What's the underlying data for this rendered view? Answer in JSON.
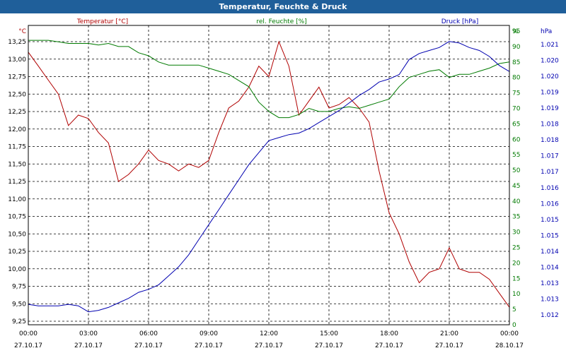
{
  "window": {
    "title": "Temperatur, Feuchte & Druck"
  },
  "chart_data": {
    "type": "line",
    "title": "Temperatur, Feuchte & Druck",
    "grid": true,
    "x_ticks": [
      {
        "time": "00:00",
        "date": "27.10.17"
      },
      {
        "time": "03:00",
        "date": "27.10.17"
      },
      {
        "time": "06:00",
        "date": "27.10.17"
      },
      {
        "time": "09:00",
        "date": "27.10.17"
      },
      {
        "time": "12:00",
        "date": "27.10.17"
      },
      {
        "time": "15:00",
        "date": "27.10.17"
      },
      {
        "time": "18:00",
        "date": "27.10.17"
      },
      {
        "time": "21:00",
        "date": "27.10.17"
      },
      {
        "time": "00:00",
        "date": "28.10.17"
      }
    ],
    "axes": {
      "temperature": {
        "label": "Temperatur [°C]",
        "unit": "°C",
        "range": [
          9.25,
          13.25
        ],
        "ticks": [
          "13,25",
          "13,00",
          "12,75",
          "12,50",
          "12,25",
          "12,00",
          "11,75",
          "11,50",
          "11,25",
          "11,00",
          "10,75",
          "10,50",
          "10,25",
          "10,00",
          "9,75",
          "9,50",
          "9,25"
        ]
      },
      "humidity": {
        "label": "rel. Feuchte [%]",
        "unit": "%",
        "range": [
          0,
          95
        ],
        "ticks": [
          "95",
          "90",
          "85",
          "80",
          "75",
          "70",
          "65",
          "60",
          "55",
          "50",
          "45",
          "40",
          "35",
          "30",
          "25",
          "20",
          "15",
          "10",
          "5",
          "0"
        ]
      },
      "pressure": {
        "label": "Druck [hPa]",
        "unit": "hPa",
        "range": [
          1012,
          1021
        ],
        "ticks": [
          "1.021",
          "1.020",
          "1.020",
          "1.019",
          "1.019",
          "1.018",
          "1.018",
          "1.017",
          "1.017",
          "1.016",
          "1.016",
          "1.015",
          "1.015",
          "1.014",
          "1.014",
          "1.013",
          "1.013",
          "1.012"
        ]
      }
    },
    "colors": {
      "temperature": "#b00000",
      "humidity": "#007a00",
      "pressure": "#0000b0",
      "title_bar": "#1f5f9a"
    },
    "series": [
      {
        "name": "Temperatur [°C]",
        "axis": "temperature",
        "x": [
          0,
          0.5,
          1,
          1.5,
          2,
          2.5,
          3,
          3.5,
          4,
          4.5,
          5,
          5.5,
          6,
          6.5,
          7,
          7.5,
          8,
          8.5,
          9,
          9.5,
          10,
          10.5,
          11,
          11.5,
          12,
          12.5,
          13,
          13.5,
          14,
          14.5,
          15,
          15.5,
          16,
          16.5,
          17,
          17.5,
          18,
          18.5,
          19,
          19.5,
          20,
          20.5,
          21,
          21.5,
          22,
          22.5,
          23,
          23.5,
          24
        ],
        "y": [
          13.1,
          12.9,
          12.7,
          12.5,
          12.05,
          12.2,
          12.15,
          11.95,
          11.8,
          11.25,
          11.35,
          11.5,
          11.7,
          11.55,
          11.5,
          11.4,
          11.5,
          11.45,
          11.55,
          11.95,
          12.3,
          12.4,
          12.6,
          12.9,
          12.75,
          13.25,
          12.9,
          12.2,
          12.4,
          12.6,
          12.3,
          12.35,
          12.45,
          12.3,
          12.1,
          11.4,
          10.8,
          10.5,
          10.1,
          9.8,
          9.95,
          10.0,
          10.3,
          10.0,
          9.95,
          9.95,
          9.85,
          9.65,
          9.45
        ]
      },
      {
        "name": "rel. Feuchte [%]",
        "axis": "humidity",
        "x": [
          0,
          0.5,
          1,
          1.5,
          2,
          2.5,
          3,
          3.5,
          4,
          4.5,
          5,
          5.5,
          6,
          6.5,
          7,
          7.5,
          8,
          8.5,
          9,
          9.5,
          10,
          10.5,
          11,
          11.5,
          12,
          12.5,
          13,
          13.5,
          14,
          14.5,
          15,
          15.5,
          16,
          16.5,
          17,
          17.5,
          18,
          18.5,
          19,
          19.5,
          20,
          20.5,
          21,
          21.5,
          22,
          22.5,
          23,
          23.5,
          24
        ],
        "y": [
          92,
          92,
          92,
          91.5,
          91,
          91,
          91,
          90.5,
          91,
          90,
          90,
          88,
          87,
          85,
          84,
          84,
          84,
          84,
          83,
          82,
          81,
          79,
          77,
          72,
          69,
          67,
          67,
          68,
          70,
          69,
          69,
          70,
          70.5,
          70,
          71,
          72,
          73,
          77,
          80,
          81,
          82,
          82.5,
          80,
          81,
          81,
          82,
          83,
          84.5,
          85
        ]
      },
      {
        "name": "Druck [hPa]",
        "axis": "pressure",
        "x": [
          0,
          0.5,
          1,
          1.5,
          2,
          2.5,
          3,
          3.5,
          4,
          4.5,
          5,
          5.5,
          6,
          6.5,
          7,
          7.5,
          8,
          8.5,
          9,
          9.5,
          10,
          10.5,
          11,
          11.5,
          12,
          12.5,
          13,
          13.5,
          14,
          14.5,
          15,
          15.5,
          16,
          16.5,
          17,
          17.5,
          18,
          18.5,
          19,
          19.5,
          20,
          20.5,
          21,
          21.5,
          22,
          22.5,
          23,
          23.5,
          24
        ],
        "y": [
          1012.35,
          1012.3,
          1012.3,
          1012.3,
          1012.35,
          1012.3,
          1012.1,
          1012.15,
          1012.25,
          1012.4,
          1012.55,
          1012.75,
          1012.85,
          1013.0,
          1013.3,
          1013.6,
          1014.0,
          1014.5,
          1015.0,
          1015.5,
          1016.0,
          1016.5,
          1017.0,
          1017.4,
          1017.8,
          1017.9,
          1018.0,
          1018.05,
          1018.2,
          1018.4,
          1018.6,
          1018.8,
          1019.05,
          1019.3,
          1019.5,
          1019.75,
          1019.85,
          1020.0,
          1020.5,
          1020.7,
          1020.8,
          1020.9,
          1021.1,
          1021.05,
          1020.9,
          1020.8,
          1020.6,
          1020.3,
          1020.1
        ]
      }
    ]
  }
}
